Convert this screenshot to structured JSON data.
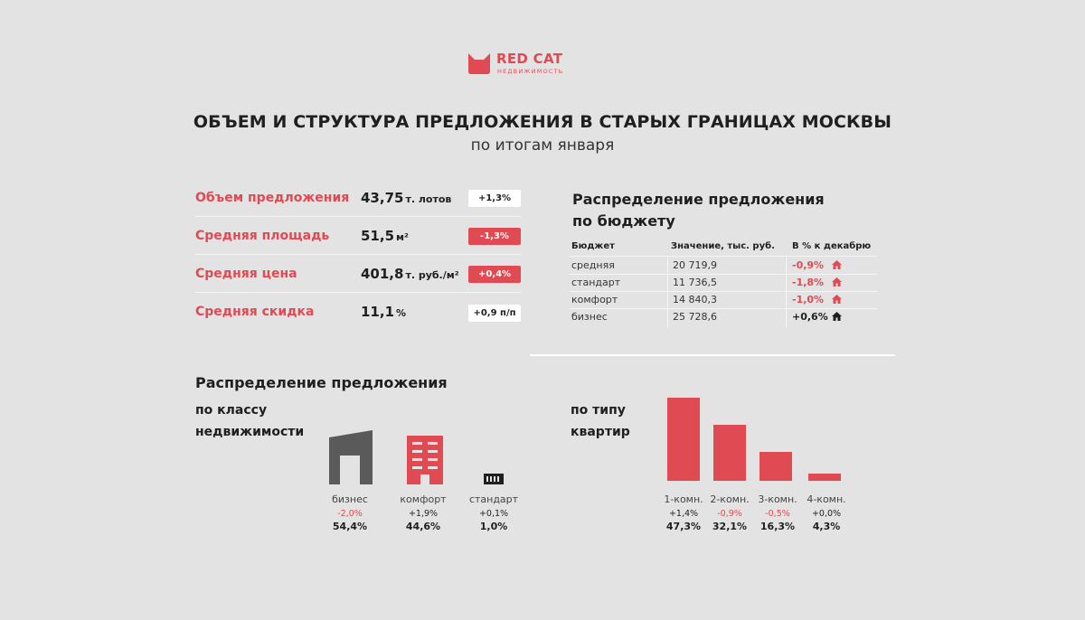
{
  "colors": {
    "accent": "#e04a53",
    "dark": "#5a5a5a",
    "background": "#e3e3e3"
  },
  "logo": {
    "name": "RED CAT",
    "subtitle": "НЕДВИЖИМОСТЬ",
    "icon": "cat-head-icon"
  },
  "header": {
    "title": "ОБЪЕМ И СТРУКТУРА ПРЕДЛОЖЕНИЯ В СТАРЫХ ГРАНИЦАХ МОСКВЫ",
    "subtitle": "по итогам января"
  },
  "kpis": [
    {
      "label": "Объем предложения",
      "value": "43,75",
      "unit": "т. лотов",
      "change": "+1,3%",
      "badge": "white"
    },
    {
      "label": "Средняя площадь",
      "value": "51,5",
      "unit": "м²",
      "change": "-1,3%",
      "badge": "red"
    },
    {
      "label": "Средняя цена",
      "value": "401,8",
      "unit": "т. руб./м²",
      "change": "+0,4%",
      "badge": "red"
    },
    {
      "label": "Средняя скидка",
      "value": "11,1",
      "unit": "%",
      "change": "+0,9 п/п",
      "badge": "white"
    }
  ],
  "budget": {
    "title_line1": "Распределение предложения",
    "title_line2": "по бюджету",
    "headers": [
      "Бюджет",
      "Значение, тыс. руб.",
      "В % к декабрю"
    ],
    "rows": [
      {
        "name": "средняя",
        "value": "20 719,9",
        "change": "-0,9%",
        "trend": "red"
      },
      {
        "name": "стандарт",
        "value": "11 736,5",
        "change": "-1,8%",
        "trend": "red"
      },
      {
        "name": "комфорт",
        "value": "14 840,3",
        "change": "-1,0%",
        "trend": "red"
      },
      {
        "name": "бизнес",
        "value": "25 728,6",
        "change": "+0,6%",
        "trend": "black"
      }
    ]
  },
  "distribution": {
    "title": "Распределение предложения",
    "by_class": {
      "heading_line1": "по классу",
      "heading_line2": "недвижимости",
      "items": [
        {
          "name": "бизнес",
          "change": "-2,0%",
          "share": "54,4%",
          "icon": "business-building-icon"
        },
        {
          "name": "комфорт",
          "change": "+1,9%",
          "share": "44,6%",
          "icon": "comfort-building-icon"
        },
        {
          "name": "стандарт",
          "change": "+0,1%",
          "share": "1,0%",
          "icon": "standard-building-icon"
        }
      ]
    },
    "by_type": {
      "heading_line1": "по типу",
      "heading_line2": "квартир",
      "items": [
        {
          "name": "1-комн.",
          "change": "+1,4%",
          "share": "47,3%",
          "share_value": 47.3
        },
        {
          "name": "2-комн.",
          "change": "-0,9%",
          "share": "32,1%",
          "share_value": 32.1
        },
        {
          "name": "3-комн.",
          "change": "-0,5%",
          "share": "16,3%",
          "share_value": 16.3
        },
        {
          "name": "4-комн.",
          "change": "+0,0%",
          "share": "4,3%",
          "share_value": 4.3
        }
      ]
    }
  }
}
